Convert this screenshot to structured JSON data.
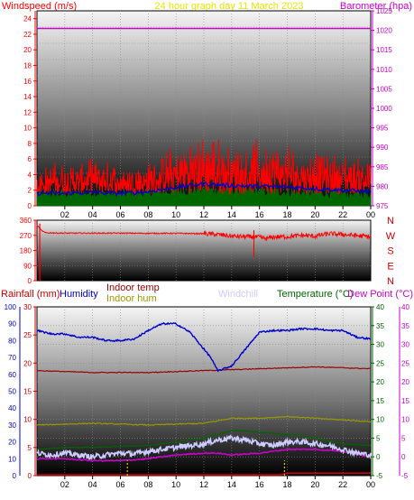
{
  "colors": {
    "background": "#ffffff",
    "windspeed": "#ff0000",
    "barometer": "#cc00cc",
    "humidity": "#0000cc",
    "rainfall": "#cc0000",
    "indoor_temp": "#990000",
    "indoor_hum": "#999900",
    "windchill": "#ccccff",
    "temperature": "#006600",
    "dewpoint": "#cc00cc",
    "title": "#e6e600"
  },
  "header": {
    "title": "24 hour graph day 11 March 2023"
  },
  "chart_data": [
    {
      "type": "line",
      "title": "24 hour graph day 11 March 2023",
      "ylabel": "Windspeed (m/s)",
      "y2label": "Barometer (hpa)",
      "x_ticks": [
        "02",
        "04",
        "06",
        "08",
        "10",
        "12",
        "14",
        "16",
        "18",
        "20",
        "22",
        "00"
      ],
      "y_ticks": [
        "0",
        "2",
        "4",
        "6",
        "8",
        "10",
        "12",
        "14",
        "16",
        "18",
        "20",
        "22",
        "24"
      ],
      "y2_ticks": [
        "975",
        "980",
        "985",
        "990",
        "995",
        "1000",
        "1005",
        "1010",
        "1015",
        "1020",
        "1025"
      ],
      "ylim": [
        0,
        25
      ],
      "y2lim": [
        975,
        1025
      ],
      "grid": true,
      "series": [
        {
          "name": "Windspeed",
          "axis": "left",
          "color": "#ff0000",
          "x": [
            0,
            1,
            2,
            3,
            4,
            5,
            6,
            7,
            8,
            9,
            10,
            11,
            12,
            13,
            14,
            15,
            16,
            17,
            18,
            19,
            20,
            21,
            22,
            23,
            24
          ],
          "values": [
            3,
            3.2,
            3.5,
            3.3,
            3.8,
            3.5,
            3.2,
            3,
            3.4,
            4.5,
            5,
            6,
            6.2,
            6,
            5.5,
            5.8,
            6,
            5.5,
            5.2,
            5,
            4.8,
            4.5,
            4.5,
            4.2,
            4
          ]
        },
        {
          "name": "Average windspeed",
          "axis": "left",
          "color": "#0000cc",
          "x": [
            0,
            2,
            4,
            6,
            8,
            10,
            12,
            14,
            16,
            18,
            20,
            22,
            24
          ],
          "values": [
            1.6,
            1.6,
            1.7,
            1.6,
            1.8,
            2.4,
            2.8,
            2.6,
            2.5,
            2.4,
            2.2,
            2,
            1.8
          ]
        },
        {
          "name": "Wind gust",
          "axis": "left",
          "color": "#006600",
          "x": [
            0,
            2,
            4,
            6,
            8,
            10,
            12,
            14,
            16,
            18,
            20,
            22,
            24
          ],
          "values": [
            0.8,
            0.9,
            1,
            0.8,
            1,
            1.2,
            1.4,
            1.3,
            1.2,
            1.1,
            1,
            0.9,
            0.9
          ]
        },
        {
          "name": "Barometer",
          "axis": "right",
          "color": "#cc00cc",
          "x": [
            0,
            24
          ],
          "values": [
            1020.5,
            1020.5
          ]
        }
      ]
    },
    {
      "type": "line",
      "title": "",
      "y_ticks": [
        "0",
        "45",
        "90",
        "135",
        "180",
        "225",
        "270",
        "315",
        "360"
      ],
      "compass": [
        "N",
        "W",
        "S",
        "E",
        "N"
      ],
      "ylim": [
        0,
        360
      ],
      "grid": true,
      "series": [
        {
          "name": "Wind direction",
          "color": "#ff0000",
          "x": [
            0,
            0.3,
            0.6,
            1,
            2,
            4,
            6,
            8,
            10,
            12,
            13,
            14,
            15,
            16,
            16.5,
            17,
            18,
            19,
            20,
            21,
            22,
            23,
            24
          ],
          "values": [
            330,
            300,
            285,
            285,
            283,
            283,
            283,
            282,
            282,
            280,
            275,
            265,
            262,
            258,
            250,
            260,
            262,
            270,
            265,
            280,
            275,
            268,
            262
          ]
        }
      ]
    },
    {
      "type": "line",
      "title": "",
      "ylabels": {
        "rainfall": "Rainfall (mm)",
        "humidity": "Humidity",
        "indoor_temp": "Indoor temp",
        "indoor_hum": "Indoor hum",
        "windchill": "Windchill",
        "temperature": "Temperature (°C)",
        "dewpoint": "Dew Point (°C)"
      },
      "hum_ticks": [
        "0",
        "10",
        "20",
        "30",
        "40",
        "50",
        "60",
        "70",
        "80",
        "90",
        "100"
      ],
      "rain_ticks": [
        "0",
        "5",
        "10",
        "15",
        "20",
        "25",
        "30"
      ],
      "temp_ticks": [
        "-5",
        "0",
        "5",
        "10",
        "15",
        "20",
        "25",
        "30",
        "35",
        "40"
      ],
      "hum_lim": [
        0,
        100
      ],
      "temp_lim": [
        -5,
        40
      ],
      "grid": true,
      "series": [
        {
          "name": "Humidity",
          "axis": "hum",
          "color": "#0000cc",
          "x": [
            0,
            1,
            2,
            3,
            4,
            5,
            6,
            7,
            8,
            9,
            10,
            11,
            12,
            12.5,
            13,
            14,
            15,
            16,
            17,
            18,
            19,
            20,
            21,
            22,
            23,
            24
          ],
          "values": [
            86,
            84,
            84,
            82,
            82,
            80,
            80,
            81,
            86,
            90,
            90,
            85,
            75,
            70,
            62,
            65,
            75,
            85,
            86,
            86,
            87,
            87,
            86,
            86,
            82,
            81
          ]
        },
        {
          "name": "Indoor hum",
          "axis": "hum",
          "color": "#999900",
          "x": [
            0,
            4,
            8,
            12,
            14,
            16,
            18,
            20,
            22,
            24
          ],
          "values": [
            30,
            31,
            30,
            31,
            34,
            34,
            35,
            34,
            33,
            32
          ]
        },
        {
          "name": "Indoor temp",
          "axis": "temp",
          "color": "#990000",
          "x": [
            0,
            4,
            8,
            12,
            16,
            20,
            24
          ],
          "values": [
            23,
            22.5,
            22.5,
            23,
            23.5,
            24,
            23.5
          ]
        },
        {
          "name": "Temperature",
          "axis": "temp",
          "color": "#006600",
          "x": [
            0,
            2,
            4,
            6,
            8,
            10,
            12,
            13,
            14,
            15,
            16,
            18,
            20,
            22,
            24
          ],
          "values": [
            2,
            2.5,
            2.5,
            2.8,
            3,
            4,
            5,
            6,
            7,
            7,
            6.5,
            6,
            5,
            3.5,
            3
          ]
        },
        {
          "name": "Windchill",
          "axis": "temp",
          "color": "#ccccff",
          "x": [
            0,
            1,
            2,
            3,
            4,
            5,
            6,
            7,
            8,
            9,
            10,
            11,
            12,
            13,
            14,
            15,
            16,
            17,
            18,
            19,
            20,
            21,
            22,
            23,
            24
          ],
          "values": [
            1,
            0.5,
            1,
            0.5,
            0,
            0.5,
            1,
            0.8,
            1.5,
            2,
            2.5,
            3,
            3.5,
            4.5,
            5,
            4.5,
            3.5,
            3,
            4,
            4,
            3.5,
            3,
            2,
            1,
            0.5
          ]
        },
        {
          "name": "Dew Point",
          "axis": "temp",
          "color": "#cc00cc",
          "x": [
            0,
            2,
            4,
            6,
            8,
            10,
            12,
            13,
            14,
            16,
            18,
            20,
            22,
            24
          ],
          "values": [
            -0.5,
            -0.5,
            -1,
            -1,
            -0.5,
            0.5,
            1,
            1,
            0.5,
            1,
            2,
            2,
            1.5,
            0
          ]
        },
        {
          "name": "Rainfall",
          "axis": "hum",
          "color": "#cc0000",
          "x": [
            0,
            17.5,
            18,
            24
          ],
          "values": [
            0.5,
            0.5,
            1.5,
            1.5
          ]
        }
      ],
      "rain_markers_x": [
        6.5,
        17.8
      ]
    }
  ]
}
